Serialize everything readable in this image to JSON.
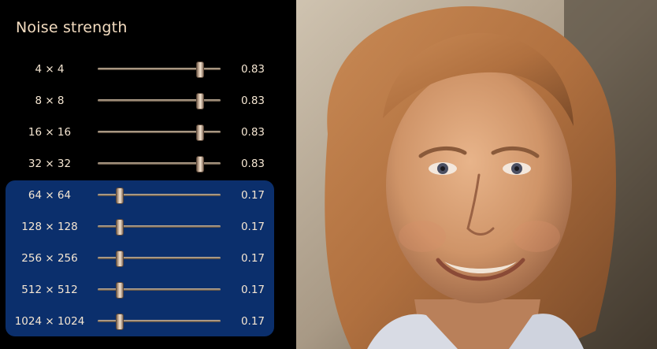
{
  "panel": {
    "title": "Noise strength"
  },
  "rows": [
    {
      "label": "4 × 4",
      "value": "0.83",
      "level": 0.83
    },
    {
      "label": "8 × 8",
      "value": "0.83",
      "level": 0.83
    },
    {
      "label": "16 × 16",
      "value": "0.83",
      "level": 0.83
    },
    {
      "label": "32 × 32",
      "value": "0.83",
      "level": 0.83
    },
    {
      "label": "64 × 64",
      "value": "0.17",
      "level": 0.17
    },
    {
      "label": "128 × 128",
      "value": "0.17",
      "level": 0.17
    },
    {
      "label": "256 × 256",
      "value": "0.17",
      "level": 0.17
    },
    {
      "label": "512 × 512",
      "value": "0.17",
      "level": 0.17
    },
    {
      "label": "1024 × 1024",
      "value": "0.17",
      "level": 0.17
    }
  ],
  "colors": {
    "background": "#000000",
    "highlight": "#0b2f6c",
    "text": "#f5e6d2"
  },
  "image": {
    "subject": "generated-face-portrait"
  }
}
